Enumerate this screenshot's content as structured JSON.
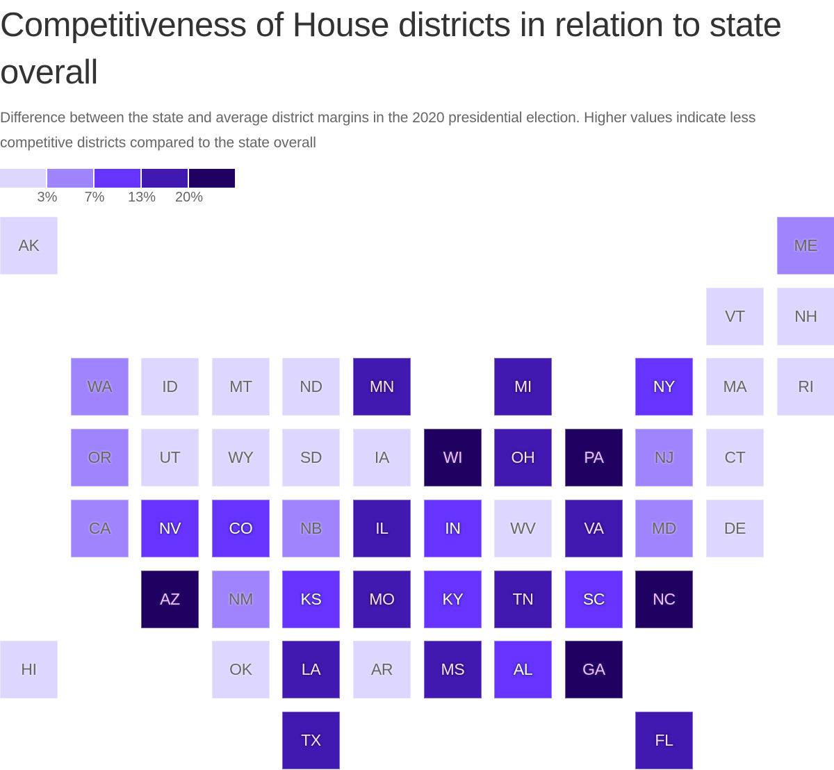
{
  "header": {
    "title": "Competitiveness of House districts in relation to state overall",
    "subtitle": "Difference between the state and average district margins in the 2020 presidential election. Higher values indicate less competitive districts compared to the state overall"
  },
  "legend": {
    "colors": [
      "#ddd6fe",
      "#a084fe",
      "#6633ff",
      "#4219b0",
      "#1f0061"
    ],
    "thresholds": [
      "3%",
      "7%",
      "13%",
      "20%"
    ]
  },
  "chart_data": {
    "type": "heatmap",
    "subtype": "tile-grid-map",
    "title": "Competitiveness of House districts in relation to state overall",
    "subtitle": "Difference between the state and average district margins in the 2020 presidential election. Higher values indicate less competitive districts compared to the state overall",
    "legend": {
      "position": "top-left",
      "bins": [
        "<3%",
        "3–7%",
        "7–13%",
        "13–20%",
        ">20%"
      ],
      "thresholds": [
        "3%",
        "7%",
        "13%",
        "20%"
      ],
      "colors": [
        "#ddd6fe",
        "#a084fe",
        "#6633ff",
        "#4219b0",
        "#1f0061"
      ]
    },
    "grid": {
      "columns": 12,
      "rows": 8
    },
    "states": [
      {
        "abbr": "AK",
        "col": 0,
        "row": 0,
        "bin": 0
      },
      {
        "abbr": "ME",
        "col": 11,
        "row": 0,
        "bin": 1
      },
      {
        "abbr": "VT",
        "col": 10,
        "row": 1,
        "bin": 0
      },
      {
        "abbr": "NH",
        "col": 11,
        "row": 1,
        "bin": 0
      },
      {
        "abbr": "WA",
        "col": 1,
        "row": 2,
        "bin": 1
      },
      {
        "abbr": "ID",
        "col": 2,
        "row": 2,
        "bin": 0
      },
      {
        "abbr": "MT",
        "col": 3,
        "row": 2,
        "bin": 0
      },
      {
        "abbr": "ND",
        "col": 4,
        "row": 2,
        "bin": 0
      },
      {
        "abbr": "MN",
        "col": 5,
        "row": 2,
        "bin": 3
      },
      {
        "abbr": "MI",
        "col": 7,
        "row": 2,
        "bin": 3
      },
      {
        "abbr": "NY",
        "col": 9,
        "row": 2,
        "bin": 2
      },
      {
        "abbr": "MA",
        "col": 10,
        "row": 2,
        "bin": 0
      },
      {
        "abbr": "RI",
        "col": 11,
        "row": 2,
        "bin": 0
      },
      {
        "abbr": "OR",
        "col": 1,
        "row": 3,
        "bin": 1
      },
      {
        "abbr": "UT",
        "col": 2,
        "row": 3,
        "bin": 0
      },
      {
        "abbr": "WY",
        "col": 3,
        "row": 3,
        "bin": 0
      },
      {
        "abbr": "SD",
        "col": 4,
        "row": 3,
        "bin": 0
      },
      {
        "abbr": "IA",
        "col": 5,
        "row": 3,
        "bin": 0
      },
      {
        "abbr": "WI",
        "col": 6,
        "row": 3,
        "bin": 4
      },
      {
        "abbr": "OH",
        "col": 7,
        "row": 3,
        "bin": 3
      },
      {
        "abbr": "PA",
        "col": 8,
        "row": 3,
        "bin": 4
      },
      {
        "abbr": "NJ",
        "col": 9,
        "row": 3,
        "bin": 1
      },
      {
        "abbr": "CT",
        "col": 10,
        "row": 3,
        "bin": 0
      },
      {
        "abbr": "CA",
        "col": 1,
        "row": 4,
        "bin": 1
      },
      {
        "abbr": "NV",
        "col": 2,
        "row": 4,
        "bin": 2
      },
      {
        "abbr": "CO",
        "col": 3,
        "row": 4,
        "bin": 2
      },
      {
        "abbr": "NB",
        "col": 4,
        "row": 4,
        "bin": 1
      },
      {
        "abbr": "IL",
        "col": 5,
        "row": 4,
        "bin": 3
      },
      {
        "abbr": "IN",
        "col": 6,
        "row": 4,
        "bin": 2
      },
      {
        "abbr": "WV",
        "col": 7,
        "row": 4,
        "bin": 0
      },
      {
        "abbr": "VA",
        "col": 8,
        "row": 4,
        "bin": 3
      },
      {
        "abbr": "MD",
        "col": 9,
        "row": 4,
        "bin": 1
      },
      {
        "abbr": "DE",
        "col": 10,
        "row": 4,
        "bin": 0
      },
      {
        "abbr": "AZ",
        "col": 2,
        "row": 5,
        "bin": 4
      },
      {
        "abbr": "NM",
        "col": 3,
        "row": 5,
        "bin": 1
      },
      {
        "abbr": "KS",
        "col": 4,
        "row": 5,
        "bin": 2
      },
      {
        "abbr": "MO",
        "col": 5,
        "row": 5,
        "bin": 3
      },
      {
        "abbr": "KY",
        "col": 6,
        "row": 5,
        "bin": 2
      },
      {
        "abbr": "TN",
        "col": 7,
        "row": 5,
        "bin": 3
      },
      {
        "abbr": "SC",
        "col": 8,
        "row": 5,
        "bin": 2
      },
      {
        "abbr": "NC",
        "col": 9,
        "row": 5,
        "bin": 4
      },
      {
        "abbr": "HI",
        "col": 0,
        "row": 6,
        "bin": 0
      },
      {
        "abbr": "OK",
        "col": 3,
        "row": 6,
        "bin": 0
      },
      {
        "abbr": "LA",
        "col": 4,
        "row": 6,
        "bin": 3
      },
      {
        "abbr": "AR",
        "col": 5,
        "row": 6,
        "bin": 0
      },
      {
        "abbr": "MS",
        "col": 6,
        "row": 6,
        "bin": 3
      },
      {
        "abbr": "AL",
        "col": 7,
        "row": 6,
        "bin": 2
      },
      {
        "abbr": "GA",
        "col": 8,
        "row": 6,
        "bin": 4
      },
      {
        "abbr": "TX",
        "col": 4,
        "row": 7,
        "bin": 3
      },
      {
        "abbr": "FL",
        "col": 9,
        "row": 7,
        "bin": 3
      }
    ]
  }
}
